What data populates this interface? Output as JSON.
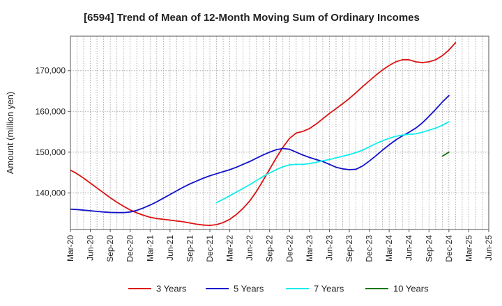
{
  "chart_data": {
    "type": "line",
    "title": "[6594]  Trend of Mean of 12-Month Moving Sum of Ordinary Incomes",
    "xlabel": "",
    "ylabel": "Amount (million yen)",
    "ylim": [
      131000,
      178500
    ],
    "yticks": [
      140000,
      150000,
      160000,
      170000
    ],
    "ytick_labels": [
      "140,000",
      "150,000",
      "160,000",
      "170,000"
    ],
    "xlim": [
      0,
      63
    ],
    "xtick_labels": [
      "Mar-20",
      "Jun-20",
      "Sep-20",
      "Dec-20",
      "Mar-21",
      "Jun-21",
      "Sep-21",
      "Dec-21",
      "Mar-22",
      "Jun-22",
      "Sep-22",
      "Dec-22",
      "Mar-23",
      "Jun-23",
      "Sep-23",
      "Dec-23",
      "Mar-24",
      "Jun-24",
      "Sep-24",
      "Dec-24",
      "Mar-25",
      "Jun-25"
    ],
    "grid": true,
    "legend_position": "bottom",
    "series": [
      {
        "name": "3 Years",
        "color": "#dd1111",
        "points": [
          [
            0,
            145600
          ],
          [
            1,
            144700
          ],
          [
            2,
            143600
          ],
          [
            3,
            142400
          ],
          [
            4,
            141200
          ],
          [
            5,
            140000
          ],
          [
            6,
            138800
          ],
          [
            7,
            137700
          ],
          [
            8,
            136700
          ],
          [
            9,
            135800
          ],
          [
            10,
            135100
          ],
          [
            11,
            134500
          ],
          [
            12,
            134000
          ],
          [
            13,
            133700
          ],
          [
            14,
            133500
          ],
          [
            15,
            133300
          ],
          [
            16,
            133100
          ],
          [
            17,
            132900
          ],
          [
            18,
            132600
          ],
          [
            19,
            132300
          ],
          [
            20,
            132100
          ],
          [
            21,
            132000
          ],
          [
            22,
            132200
          ],
          [
            23,
            132700
          ],
          [
            24,
            133500
          ],
          [
            25,
            134700
          ],
          [
            26,
            136200
          ],
          [
            27,
            138000
          ],
          [
            28,
            140300
          ],
          [
            29,
            143000
          ],
          [
            30,
            145800
          ],
          [
            31,
            148600
          ],
          [
            32,
            151200
          ],
          [
            33,
            153400
          ],
          [
            34,
            154700
          ],
          [
            35,
            155100
          ],
          [
            36,
            155800
          ],
          [
            37,
            156900
          ],
          [
            38,
            158200
          ],
          [
            39,
            159500
          ],
          [
            40,
            160700
          ],
          [
            41,
            161900
          ],
          [
            42,
            163200
          ],
          [
            43,
            164600
          ],
          [
            44,
            166100
          ],
          [
            45,
            167500
          ],
          [
            46,
            168900
          ],
          [
            47,
            170200
          ],
          [
            48,
            171300
          ],
          [
            49,
            172200
          ],
          [
            50,
            172700
          ],
          [
            51,
            172700
          ],
          [
            52,
            172200
          ],
          [
            53,
            172000
          ],
          [
            54,
            172200
          ],
          [
            55,
            172700
          ],
          [
            56,
            173700
          ],
          [
            57,
            175100
          ],
          [
            58,
            176900
          ]
        ]
      },
      {
        "name": "5 Years",
        "color": "#1111cc",
        "points": [
          [
            0,
            136000
          ],
          [
            1,
            135900
          ],
          [
            2,
            135750
          ],
          [
            3,
            135600
          ],
          [
            4,
            135450
          ],
          [
            5,
            135300
          ],
          [
            6,
            135200
          ],
          [
            7,
            135150
          ],
          [
            8,
            135150
          ],
          [
            9,
            135300
          ],
          [
            10,
            135700
          ],
          [
            11,
            136300
          ],
          [
            12,
            137000
          ],
          [
            13,
            137800
          ],
          [
            14,
            138700
          ],
          [
            15,
            139600
          ],
          [
            16,
            140500
          ],
          [
            17,
            141400
          ],
          [
            18,
            142200
          ],
          [
            19,
            142900
          ],
          [
            20,
            143600
          ],
          [
            21,
            144200
          ],
          [
            22,
            144700
          ],
          [
            23,
            145200
          ],
          [
            24,
            145700
          ],
          [
            25,
            146300
          ],
          [
            26,
            147000
          ],
          [
            27,
            147700
          ],
          [
            28,
            148500
          ],
          [
            29,
            149300
          ],
          [
            30,
            150000
          ],
          [
            31,
            150600
          ],
          [
            32,
            150900
          ],
          [
            33,
            150700
          ],
          [
            34,
            150000
          ],
          [
            35,
            149300
          ],
          [
            36,
            148700
          ],
          [
            37,
            148200
          ],
          [
            38,
            147700
          ],
          [
            39,
            147000
          ],
          [
            40,
            146300
          ],
          [
            41,
            145900
          ],
          [
            42,
            145700
          ],
          [
            43,
            145800
          ],
          [
            44,
            146600
          ],
          [
            45,
            147800
          ],
          [
            46,
            149100
          ],
          [
            47,
            150500
          ],
          [
            48,
            151800
          ],
          [
            49,
            153000
          ],
          [
            50,
            154000
          ],
          [
            51,
            154900
          ],
          [
            52,
            155900
          ],
          [
            53,
            157200
          ],
          [
            54,
            158800
          ],
          [
            55,
            160500
          ],
          [
            56,
            162300
          ],
          [
            57,
            163900
          ]
        ]
      },
      {
        "name": "7 Years",
        "color": "#11eeee",
        "points": [
          [
            22,
            137600
          ],
          [
            23,
            138400
          ],
          [
            24,
            139300
          ],
          [
            25,
            140200
          ],
          [
            26,
            141100
          ],
          [
            27,
            142000
          ],
          [
            28,
            143000
          ],
          [
            29,
            144000
          ],
          [
            30,
            144900
          ],
          [
            31,
            145700
          ],
          [
            32,
            146400
          ],
          [
            33,
            146900
          ],
          [
            34,
            147000
          ],
          [
            35,
            147000
          ],
          [
            36,
            147200
          ],
          [
            37,
            147500
          ],
          [
            38,
            147900
          ],
          [
            39,
            148200
          ],
          [
            40,
            148600
          ],
          [
            41,
            149000
          ],
          [
            42,
            149400
          ],
          [
            43,
            149900
          ],
          [
            44,
            150500
          ],
          [
            45,
            151300
          ],
          [
            46,
            152100
          ],
          [
            47,
            152800
          ],
          [
            48,
            153400
          ],
          [
            49,
            153900
          ],
          [
            50,
            154200
          ],
          [
            51,
            154400
          ],
          [
            52,
            154500
          ],
          [
            53,
            154900
          ],
          [
            54,
            155400
          ],
          [
            55,
            155900
          ],
          [
            56,
            156600
          ],
          [
            57,
            157500
          ]
        ]
      },
      {
        "name": "10 Years",
        "color": "#117711",
        "points": [
          [
            56,
            149000
          ],
          [
            57,
            150000
          ]
        ]
      }
    ]
  }
}
